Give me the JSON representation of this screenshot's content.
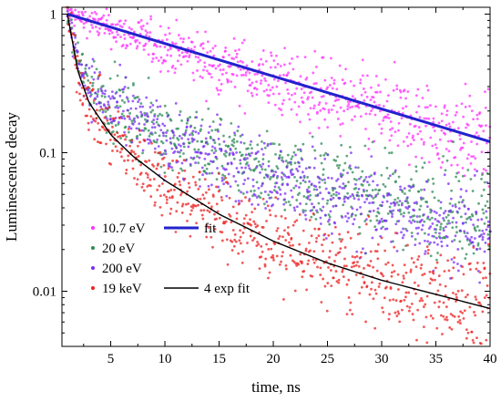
{
  "chart_data": {
    "type": "scatter",
    "title": "",
    "xlabel": "time, ns",
    "ylabel": "Luminescence decay",
    "xlim": [
      0.5,
      40
    ],
    "ylim": [
      0.004,
      1.12
    ],
    "yscale": "log",
    "grid": false,
    "legend_position": "bottom-left",
    "x_ticks": [
      5,
      10,
      15,
      20,
      25,
      30,
      35,
      40
    ],
    "x_tick_labels": [
      "5",
      "10",
      "15",
      "20",
      "25",
      "30",
      "35",
      "40"
    ],
    "y_ticks": [
      0.01,
      0.1,
      1
    ],
    "y_tick_labels": [
      "0.01",
      "0.1",
      "1"
    ],
    "series": [
      {
        "name": "10.7 eV",
        "kind": "points",
        "color": "#ff33ff",
        "x": [
          1,
          5,
          10,
          15,
          20,
          25,
          30,
          35,
          40
        ],
        "y": [
          1.0,
          0.78,
          0.58,
          0.43,
          0.33,
          0.25,
          0.19,
          0.15,
          0.12
        ]
      },
      {
        "name": "20 eV",
        "kind": "points",
        "color": "#2e8b57",
        "x": [
          1,
          2,
          3,
          5,
          7,
          10,
          15,
          20,
          25,
          30,
          35,
          40
        ],
        "y": [
          1.0,
          0.45,
          0.31,
          0.22,
          0.18,
          0.14,
          0.1,
          0.075,
          0.058,
          0.048,
          0.041,
          0.035
        ]
      },
      {
        "name": "200 eV",
        "kind": "points",
        "color": "#7b2cf5",
        "x": [
          1,
          2,
          3,
          5,
          7,
          10,
          15,
          20,
          25,
          30,
          35,
          40
        ],
        "y": [
          1.0,
          0.45,
          0.31,
          0.21,
          0.17,
          0.13,
          0.09,
          0.065,
          0.049,
          0.039,
          0.033,
          0.027
        ]
      },
      {
        "name": "19 keV",
        "kind": "points",
        "color": "#ee2222",
        "x": [
          1,
          2,
          3,
          5,
          7,
          10,
          15,
          20,
          25,
          30,
          35,
          40
        ],
        "y": [
          1.0,
          0.38,
          0.23,
          0.135,
          0.095,
          0.063,
          0.036,
          0.023,
          0.016,
          0.012,
          0.0095,
          0.0075
        ]
      },
      {
        "name": "fit",
        "kind": "line",
        "color": "#2222cc",
        "x": [
          1,
          40
        ],
        "y": [
          1.0,
          0.12
        ]
      },
      {
        "name": "4 exp fit",
        "kind": "line",
        "color": "#000000",
        "x": [
          1,
          2,
          3,
          5,
          7,
          10,
          15,
          20,
          25,
          30,
          35,
          40
        ],
        "y": [
          1.0,
          0.38,
          0.23,
          0.135,
          0.095,
          0.063,
          0.036,
          0.023,
          0.016,
          0.012,
          0.0095,
          0.0075
        ]
      }
    ]
  }
}
